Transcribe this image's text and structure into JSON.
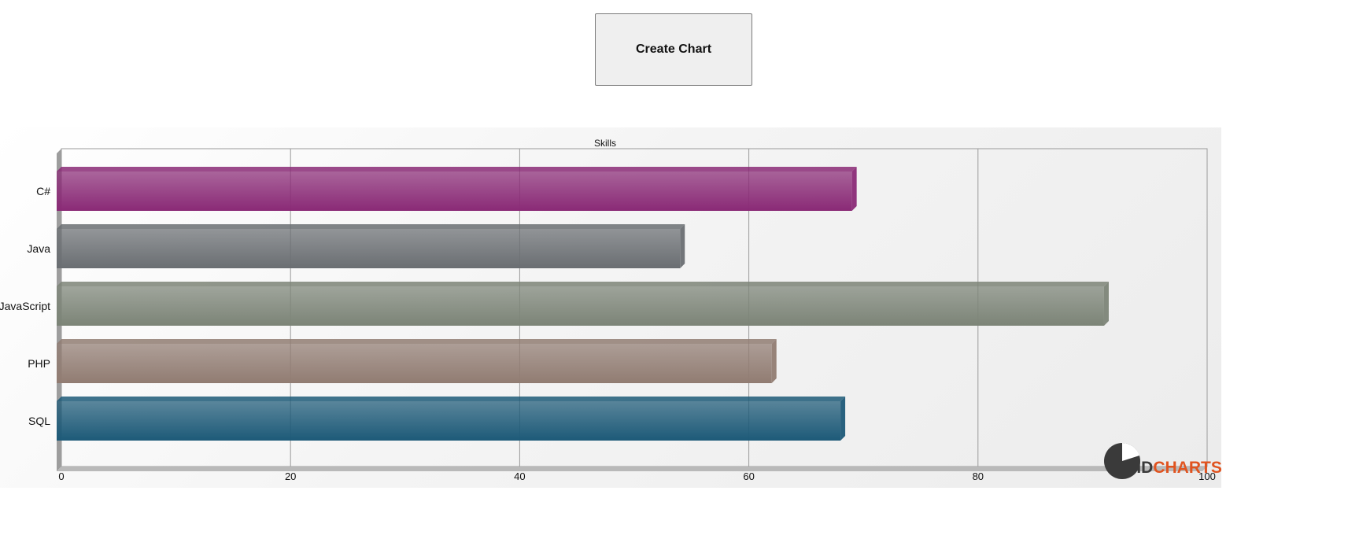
{
  "toolbar": {
    "create_chart_label": "Create Chart"
  },
  "logo": {
    "brand": "HDCHARTS",
    "accent": "#e0531f",
    "dark": "#333333"
  },
  "chart_data": {
    "type": "bar",
    "orientation": "horizontal",
    "title": "Skills",
    "categories": [
      "C#",
      "Java",
      "JavaScript",
      "PHP",
      "SQL"
    ],
    "values": [
      69,
      54,
      91,
      62,
      68
    ],
    "xlim": [
      0,
      100
    ],
    "xticks": [
      0,
      20,
      40,
      60,
      80,
      100
    ],
    "grid": true,
    "legend": "none",
    "colors": [
      "#8a2a76",
      "#6a6e72",
      "#7c8477",
      "#917c72",
      "#1d5a78"
    ]
  }
}
